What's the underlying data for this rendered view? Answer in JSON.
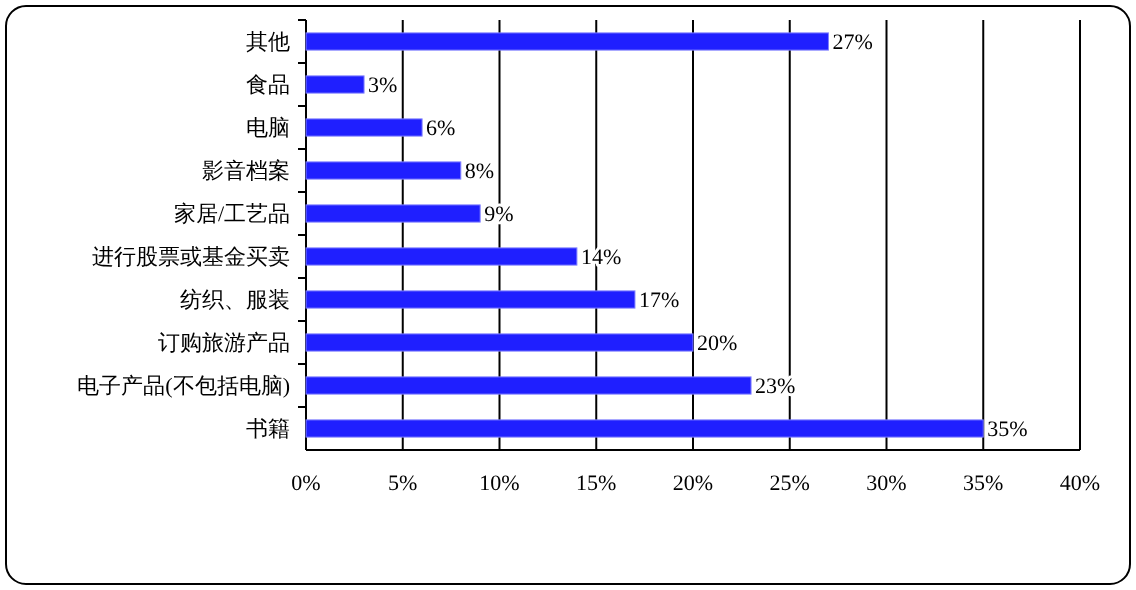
{
  "chart_data": {
    "type": "bar",
    "orientation": "horizontal",
    "categories": [
      "其他",
      "食品",
      "电脑",
      "影音档案",
      "家居/工艺品",
      "进行股票或基金买卖",
      "纺织、服装",
      "订购旅游产品",
      "电子产品(不包括电脑)",
      "书籍"
    ],
    "values": [
      27,
      3,
      6,
      8,
      9,
      14,
      17,
      20,
      23,
      35
    ],
    "value_labels": [
      "27%",
      "3%",
      "6%",
      "8%",
      "9%",
      "14%",
      "17%",
      "20%",
      "23%",
      "35%"
    ],
    "color": "#1f1fff",
    "xlim": [
      0,
      40
    ],
    "xticks": [
      {
        "value": 0,
        "label": "0%"
      },
      {
        "value": 5,
        "label": "5%"
      },
      {
        "value": 10,
        "label": "10%"
      },
      {
        "value": 15,
        "label": "15%"
      },
      {
        "value": 20,
        "label": "20%"
      },
      {
        "value": 25,
        "label": "25%"
      },
      {
        "value": 30,
        "label": "30%"
      },
      {
        "value": 35,
        "label": "35%"
      },
      {
        "value": 40,
        "label": "40%"
      }
    ],
    "grid": "x"
  }
}
